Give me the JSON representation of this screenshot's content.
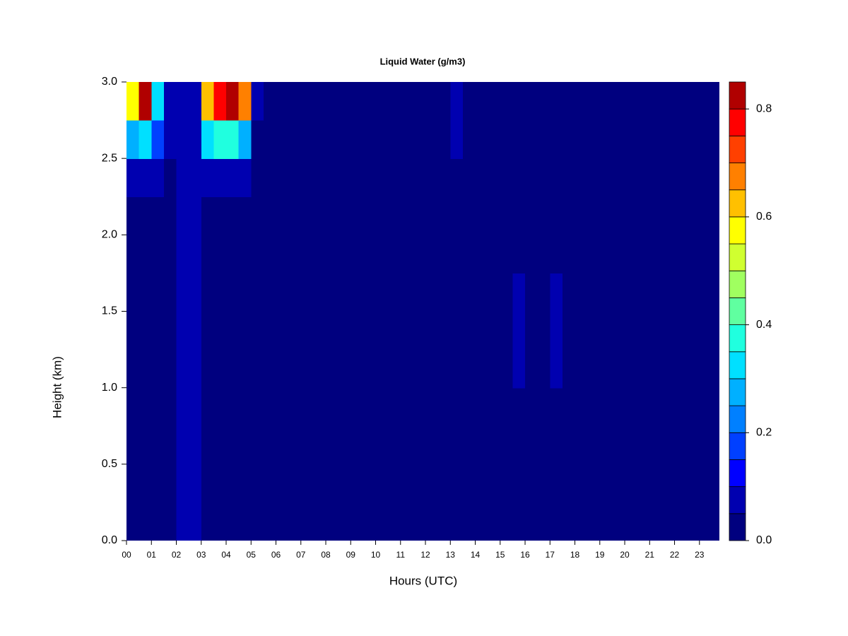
{
  "chart_data": {
    "type": "heatmap",
    "title": "Liquid Water (g/m3)",
    "xlabel": "Hours (UTC)",
    "ylabel": "Height (km)",
    "xlim": [
      0,
      23.8
    ],
    "ylim": [
      0,
      3
    ],
    "xticks": [
      {
        "value": 0,
        "label": "00"
      },
      {
        "value": 1,
        "label": "01"
      },
      {
        "value": 2,
        "label": "02"
      },
      {
        "value": 3,
        "label": "03"
      },
      {
        "value": 4,
        "label": "04"
      },
      {
        "value": 5,
        "label": "05"
      },
      {
        "value": 6,
        "label": "06"
      },
      {
        "value": 7,
        "label": "07"
      },
      {
        "value": 8,
        "label": "08"
      },
      {
        "value": 9,
        "label": "09"
      },
      {
        "value": 10,
        "label": "10"
      },
      {
        "value": 11,
        "label": "11"
      },
      {
        "value": 12,
        "label": "12"
      },
      {
        "value": 13,
        "label": "13"
      },
      {
        "value": 14,
        "label": "14"
      },
      {
        "value": 15,
        "label": "15"
      },
      {
        "value": 16,
        "label": "16"
      },
      {
        "value": 17,
        "label": "17"
      },
      {
        "value": 18,
        "label": "18"
      },
      {
        "value": 19,
        "label": "19"
      },
      {
        "value": 20,
        "label": "20"
      },
      {
        "value": 21,
        "label": "21"
      },
      {
        "value": 22,
        "label": "22"
      },
      {
        "value": 23,
        "label": "23"
      }
    ],
    "yticks": [
      {
        "value": 0,
        "label": "0.0"
      },
      {
        "value": 0.5,
        "label": "0.5"
      },
      {
        "value": 1,
        "label": "1.0"
      },
      {
        "value": 1.5,
        "label": "1.5"
      },
      {
        "value": 2,
        "label": "2.0"
      },
      {
        "value": 2.5,
        "label": "2.5"
      },
      {
        "value": 3,
        "label": "3.0"
      }
    ],
    "x": [
      0.25,
      0.75,
      1.25,
      1.75,
      2.25,
      2.75,
      3.25,
      3.75,
      4.25,
      4.75,
      5.25,
      5.75,
      6.25,
      6.75,
      7.25,
      7.75,
      8.25,
      8.75,
      9.25,
      9.75,
      10.25,
      10.75,
      11.25,
      11.75,
      12.25,
      12.75,
      13.25,
      13.75,
      14.25,
      14.75,
      15.25,
      15.75,
      16.25,
      16.75,
      17.25,
      17.75,
      18.25,
      18.75,
      19.25,
      19.75,
      20.25,
      20.75,
      21.25,
      21.75,
      22.25,
      22.75,
      23.25,
      23.75
    ],
    "y": [
      0.125,
      0.375,
      0.625,
      0.875,
      1.125,
      1.375,
      1.625,
      1.875,
      2.125,
      2.375,
      2.625,
      2.875
    ],
    "z": [
      [
        0.02,
        0.02,
        0.02,
        0.02,
        0.06,
        0.06,
        0.02,
        0.02,
        0.02,
        0.02,
        0.02,
        0.02,
        0.02,
        0.02,
        0.02,
        0.02,
        0.02,
        0.02,
        0.02,
        0.02,
        0.02,
        0.02,
        0.02,
        0.02,
        0.02,
        0.02,
        0.02,
        0.02,
        0.02,
        0.02,
        0.02,
        0.02,
        0.02,
        0.02,
        0.02,
        0.02,
        0.02,
        0.02,
        0.02,
        0.02,
        0.02,
        0.02,
        0.02,
        0.02,
        0.02,
        0.02,
        0.02,
        0.02
      ],
      [
        0.02,
        0.02,
        0.02,
        0.02,
        0.06,
        0.06,
        0.02,
        0.02,
        0.02,
        0.02,
        0.02,
        0.02,
        0.02,
        0.02,
        0.02,
        0.02,
        0.02,
        0.02,
        0.02,
        0.02,
        0.02,
        0.02,
        0.02,
        0.02,
        0.02,
        0.02,
        0.02,
        0.02,
        0.02,
        0.02,
        0.02,
        0.02,
        0.02,
        0.02,
        0.02,
        0.02,
        0.02,
        0.02,
        0.02,
        0.02,
        0.02,
        0.02,
        0.02,
        0.02,
        0.02,
        0.02,
        0.02,
        0.02
      ],
      [
        0.02,
        0.02,
        0.02,
        0.02,
        0.06,
        0.06,
        0.02,
        0.02,
        0.02,
        0.02,
        0.02,
        0.02,
        0.02,
        0.02,
        0.02,
        0.02,
        0.02,
        0.02,
        0.02,
        0.02,
        0.02,
        0.02,
        0.02,
        0.02,
        0.02,
        0.02,
        0.02,
        0.02,
        0.02,
        0.02,
        0.02,
        0.02,
        0.02,
        0.02,
        0.02,
        0.02,
        0.02,
        0.02,
        0.02,
        0.02,
        0.02,
        0.02,
        0.02,
        0.02,
        0.02,
        0.02,
        0.02,
        0.02
      ],
      [
        0.02,
        0.02,
        0.02,
        0.02,
        0.06,
        0.06,
        0.02,
        0.02,
        0.02,
        0.02,
        0.02,
        0.02,
        0.02,
        0.02,
        0.02,
        0.02,
        0.02,
        0.02,
        0.02,
        0.02,
        0.02,
        0.02,
        0.02,
        0.02,
        0.02,
        0.02,
        0.02,
        0.02,
        0.02,
        0.02,
        0.02,
        0.02,
        0.02,
        0.02,
        0.02,
        0.02,
        0.02,
        0.02,
        0.02,
        0.02,
        0.02,
        0.02,
        0.02,
        0.02,
        0.02,
        0.02,
        0.02,
        0.02
      ],
      [
        0.02,
        0.02,
        0.02,
        0.02,
        0.06,
        0.06,
        0.02,
        0.02,
        0.02,
        0.02,
        0.02,
        0.02,
        0.02,
        0.02,
        0.02,
        0.02,
        0.02,
        0.02,
        0.02,
        0.02,
        0.02,
        0.02,
        0.02,
        0.02,
        0.02,
        0.02,
        0.02,
        0.02,
        0.02,
        0.02,
        0.02,
        0.06,
        0.02,
        0.02,
        0.06,
        0.02,
        0.02,
        0.02,
        0.02,
        0.02,
        0.02,
        0.02,
        0.02,
        0.02,
        0.02,
        0.02,
        0.02,
        0.02
      ],
      [
        0.02,
        0.02,
        0.02,
        0.02,
        0.06,
        0.06,
        0.02,
        0.02,
        0.02,
        0.02,
        0.02,
        0.02,
        0.02,
        0.02,
        0.02,
        0.02,
        0.02,
        0.02,
        0.02,
        0.02,
        0.02,
        0.02,
        0.02,
        0.02,
        0.02,
        0.02,
        0.02,
        0.02,
        0.02,
        0.02,
        0.02,
        0.06,
        0.02,
        0.02,
        0.06,
        0.02,
        0.02,
        0.02,
        0.02,
        0.02,
        0.02,
        0.02,
        0.02,
        0.02,
        0.02,
        0.02,
        0.02,
        0.02
      ],
      [
        0.02,
        0.02,
        0.02,
        0.02,
        0.06,
        0.06,
        0.02,
        0.02,
        0.02,
        0.02,
        0.02,
        0.02,
        0.02,
        0.02,
        0.02,
        0.02,
        0.02,
        0.02,
        0.02,
        0.02,
        0.02,
        0.02,
        0.02,
        0.02,
        0.02,
        0.02,
        0.02,
        0.02,
        0.02,
        0.02,
        0.02,
        0.06,
        0.02,
        0.02,
        0.06,
        0.02,
        0.02,
        0.02,
        0.02,
        0.02,
        0.02,
        0.02,
        0.02,
        0.02,
        0.02,
        0.02,
        0.02,
        0.02
      ],
      [
        0.02,
        0.02,
        0.02,
        0.02,
        0.06,
        0.06,
        0.02,
        0.02,
        0.02,
        0.02,
        0.02,
        0.02,
        0.02,
        0.02,
        0.02,
        0.02,
        0.02,
        0.02,
        0.02,
        0.02,
        0.02,
        0.02,
        0.02,
        0.02,
        0.02,
        0.02,
        0.02,
        0.02,
        0.02,
        0.02,
        0.02,
        0.02,
        0.02,
        0.02,
        0.02,
        0.02,
        0.02,
        0.02,
        0.02,
        0.02,
        0.02,
        0.02,
        0.02,
        0.02,
        0.02,
        0.02,
        0.02,
        0.02
      ],
      [
        0.02,
        0.02,
        0.02,
        0.02,
        0.06,
        0.06,
        0.02,
        0.02,
        0.02,
        0.02,
        0.02,
        0.02,
        0.02,
        0.02,
        0.02,
        0.02,
        0.02,
        0.02,
        0.02,
        0.02,
        0.02,
        0.02,
        0.02,
        0.02,
        0.02,
        0.02,
        0.02,
        0.02,
        0.02,
        0.02,
        0.02,
        0.02,
        0.02,
        0.02,
        0.02,
        0.02,
        0.02,
        0.02,
        0.02,
        0.02,
        0.02,
        0.02,
        0.02,
        0.02,
        0.02,
        0.02,
        0.02,
        0.02
      ],
      [
        0.08,
        0.08,
        0.07,
        0.04,
        0.06,
        0.06,
        0.09,
        0.09,
        0.09,
        0.09,
        0.03,
        0.02,
        0.02,
        0.02,
        0.02,
        0.02,
        0.02,
        0.02,
        0.02,
        0.02,
        0.02,
        0.02,
        0.02,
        0.02,
        0.02,
        0.02,
        0.02,
        0.02,
        0.02,
        0.02,
        0.02,
        0.02,
        0.02,
        0.02,
        0.02,
        0.02,
        0.02,
        0.02,
        0.02,
        0.02,
        0.02,
        0.02,
        0.02,
        0.02,
        0.02,
        0.02,
        0.02,
        0.02
      ],
      [
        0.25,
        0.3,
        0.15,
        0.05,
        0.06,
        0.06,
        0.3,
        0.35,
        0.35,
        0.25,
        0.04,
        0.02,
        0.02,
        0.02,
        0.02,
        0.02,
        0.02,
        0.02,
        0.02,
        0.02,
        0.02,
        0.02,
        0.02,
        0.02,
        0.02,
        0.02,
        0.06,
        0.02,
        0.02,
        0.02,
        0.02,
        0.02,
        0.02,
        0.02,
        0.02,
        0.02,
        0.02,
        0.02,
        0.02,
        0.02,
        0.02,
        0.02,
        0.02,
        0.02,
        0.02,
        0.02,
        0.02,
        0.02
      ],
      [
        0.55,
        0.8,
        0.3,
        0.06,
        0.06,
        0.06,
        0.6,
        0.75,
        0.8,
        0.65,
        0.08,
        0.02,
        0.02,
        0.02,
        0.02,
        0.02,
        0.02,
        0.02,
        0.02,
        0.02,
        0.02,
        0.02,
        0.02,
        0.02,
        0.02,
        0.02,
        0.07,
        0.02,
        0.02,
        0.02,
        0.02,
        0.02,
        0.02,
        0.02,
        0.02,
        0.02,
        0.02,
        0.02,
        0.02,
        0.02,
        0.02,
        0.02,
        0.02,
        0.02,
        0.02,
        0.02,
        0.02,
        0.02
      ]
    ],
    "zlim": [
      0,
      0.85
    ],
    "levels": [
      0,
      0.05,
      0.1,
      0.15,
      0.2,
      0.25,
      0.3,
      0.35,
      0.4,
      0.45,
      0.5,
      0.55,
      0.6,
      0.65,
      0.7,
      0.75,
      0.8,
      0.85
    ],
    "colors": [
      "#00007f",
      "#0000b0",
      "#0000ff",
      "#0040ff",
      "#0080ff",
      "#00b0ff",
      "#00e0ff",
      "#20ffdf",
      "#60ffa0",
      "#a0ff60",
      "#d0ff30",
      "#ffff00",
      "#ffc000",
      "#ff8000",
      "#ff4000",
      "#ff0000",
      "#b00000"
    ],
    "zticks": [
      {
        "value": 0,
        "label": "0.0"
      },
      {
        "value": 0.2,
        "label": "0.2"
      },
      {
        "value": 0.4,
        "label": "0.4"
      },
      {
        "value": 0.6,
        "label": "0.6"
      },
      {
        "value": 0.8,
        "label": "0.8"
      }
    ]
  }
}
